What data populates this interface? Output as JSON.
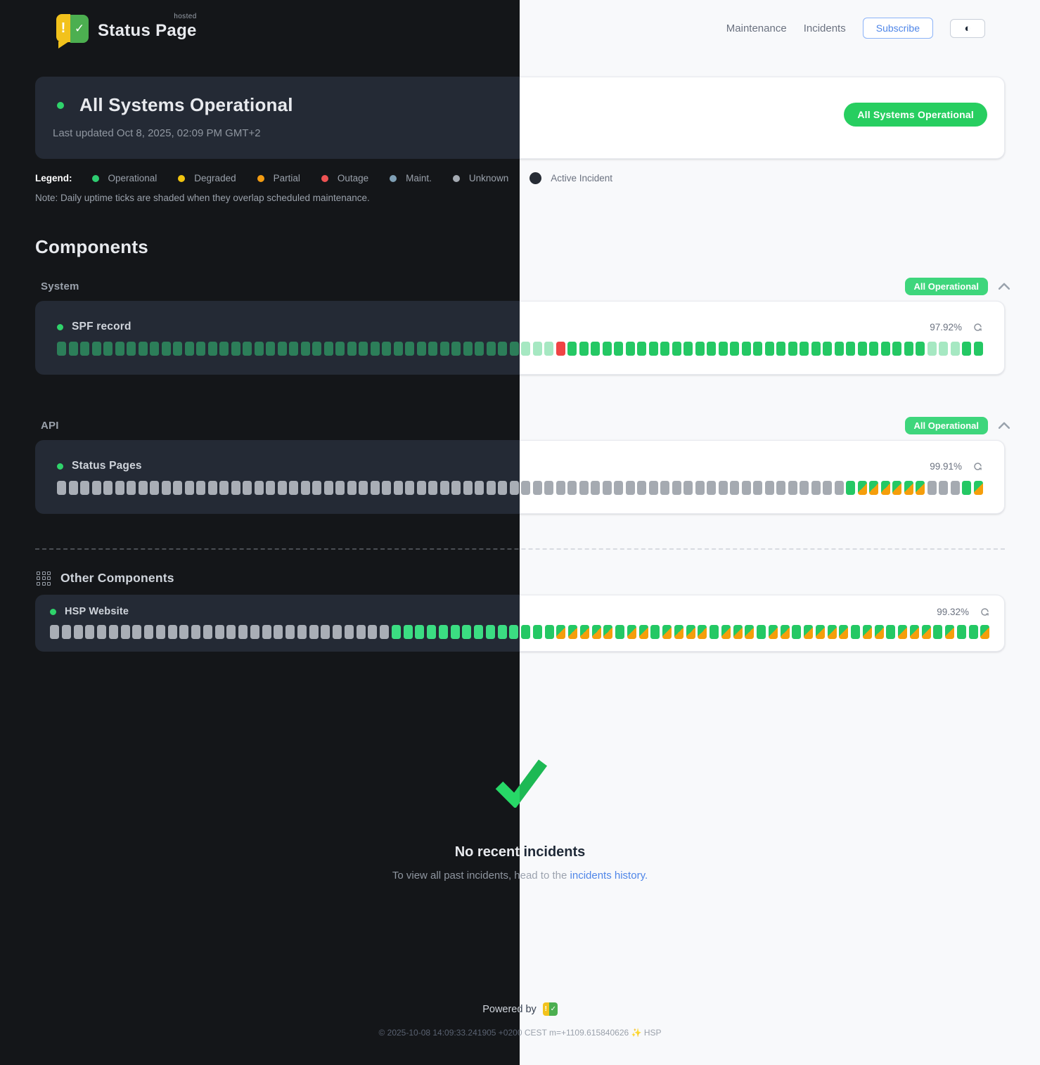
{
  "brand": {
    "name": "Status Page",
    "superscript": "hosted",
    "logo_alert": "!",
    "logo_check": "✓"
  },
  "nav": {
    "maintenance": "Maintenance",
    "incidents": "Incidents",
    "subscribe": "Subscribe",
    "theme_toggle_icon": "◐"
  },
  "banner": {
    "title": "All Systems Operational",
    "last_updated": "Last updated Oct 8, 2025, 02:09 PM GMT+2",
    "badge": "All Systems Operational",
    "badge_color": "#27ce60"
  },
  "legend": {
    "label": "Legend:",
    "items": [
      {
        "name": "Operational",
        "color": "#2ecc71"
      },
      {
        "name": "Degraded",
        "color": "#f1c40f"
      },
      {
        "name": "Partial",
        "color": "#f39c12"
      },
      {
        "name": "Outage",
        "color": "#ee5253"
      },
      {
        "name": "Maint.",
        "color": "#7f9fb5"
      },
      {
        "name": "Unknown",
        "color": "#a5abb3"
      },
      {
        "name": "Active Incident",
        "color": "#262b34",
        "size": 17
      }
    ],
    "note": "Note: Daily uptime ticks are shaded when they overlap scheduled maintenance."
  },
  "components_section": {
    "title": "Components",
    "groups": [
      {
        "name": "System",
        "badge": "All Operational",
        "items": [
          {
            "name": "SPF record",
            "uptime": "97.92%",
            "ticks": [
              "o",
              "o",
              "o",
              "o",
              "o",
              "o",
              "o",
              "o",
              "o",
              "o",
              "o",
              "o",
              "o",
              "o",
              "o",
              "o",
              "o",
              "o",
              "o",
              "o",
              "o",
              "o",
              "o",
              "o",
              "o",
              "o",
              "o",
              "o",
              "o",
              "o",
              "o",
              "o",
              "o",
              "o",
              "o",
              "o",
              "o",
              "o",
              "o",
              "o",
              "s",
              "s",
              "s",
              "r",
              "o",
              "o",
              "o",
              "o",
              "o",
              "o",
              "o",
              "o",
              "o",
              "o",
              "o",
              "o",
              "o",
              "o",
              "o",
              "o",
              "o",
              "o",
              "o",
              "o",
              "o",
              "o",
              "o",
              "o",
              "o",
              "o",
              "o",
              "o",
              "o",
              "o",
              "o",
              "s",
              "s",
              "s",
              "o",
              "o"
            ]
          }
        ]
      },
      {
        "name": "API",
        "badge": "All Operational",
        "items": [
          {
            "name": "Status Pages",
            "uptime": "99.91%",
            "ticks": [
              "u",
              "u",
              "u",
              "u",
              "u",
              "u",
              "u",
              "u",
              "u",
              "u",
              "u",
              "u",
              "u",
              "u",
              "u",
              "u",
              "u",
              "u",
              "u",
              "u",
              "u",
              "u",
              "u",
              "u",
              "u",
              "u",
              "u",
              "u",
              "u",
              "u",
              "u",
              "u",
              "u",
              "u",
              "u",
              "u",
              "u",
              "u",
              "u",
              "u",
              "u",
              "u",
              "u",
              "u",
              "u",
              "u",
              "u",
              "u",
              "u",
              "u",
              "u",
              "u",
              "u",
              "u",
              "u",
              "u",
              "u",
              "u",
              "u",
              "u",
              "u",
              "u",
              "u",
              "u",
              "u",
              "u",
              "u",
              "u",
              "o",
              "p",
              "p",
              "p",
              "p",
              "p",
              "p",
              "u",
              "u",
              "u",
              "o",
              "p"
            ]
          }
        ]
      }
    ],
    "other": {
      "title": "Other Components",
      "items": [
        {
          "name": "HSP Website",
          "uptime": "99.32%",
          "ticks": [
            "u",
            "u",
            "u",
            "u",
            "u",
            "u",
            "u",
            "u",
            "u",
            "u",
            "u",
            "u",
            "u",
            "u",
            "u",
            "u",
            "u",
            "u",
            "u",
            "u",
            "u",
            "u",
            "u",
            "u",
            "u",
            "u",
            "u",
            "u",
            "u",
            "b",
            "b",
            "b",
            "b",
            "b",
            "b",
            "b",
            "b",
            "b",
            "b",
            "b",
            "b",
            "o",
            "o",
            "p",
            "p",
            "p",
            "p",
            "p",
            "o",
            "p",
            "p",
            "o",
            "p",
            "p",
            "p",
            "p",
            "o",
            "p",
            "p",
            "p",
            "o",
            "p",
            "p",
            "o",
            "p",
            "p",
            "p",
            "p",
            "o",
            "p",
            "p",
            "o",
            "p",
            "p",
            "p",
            "o",
            "p",
            "o",
            "o",
            "p"
          ]
        }
      ]
    }
  },
  "incidents_panel": {
    "title": "No recent incidents",
    "subtitle_prefix": "To view all past incidents, head to the ",
    "link_text": "incidents history."
  },
  "footer": {
    "powered_by": "Powered by",
    "copyright": "© 2025-10-08 14:09:33.241905 +0200 CEST m=+1109.615840626",
    "sparkle": "✨",
    "suffix": "HSP"
  },
  "status_colors": {
    "operational_light": "#24c864",
    "operational_dark": "#2c7e59",
    "operational_bright_dark": "#3bdd82",
    "maintenance_shade": "#a6e8c2",
    "outage": "#ef4444",
    "unknown": "#a5aab1",
    "partial_orange": "#f59e0b"
  }
}
